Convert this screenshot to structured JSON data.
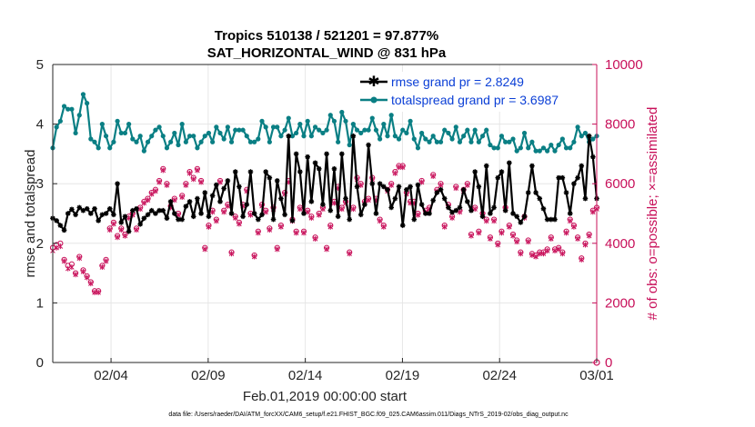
{
  "colors": {
    "rmse": "#000000",
    "spread": "#0a7f84",
    "obs": "#c8105a",
    "axis": "#262626",
    "legend_text": "#0b3fd6"
  },
  "chart_data": {
    "type": "line",
    "title_line1": "Tropics 510138 / 521201 = 97.877%",
    "title_line2": "SAT_HORIZONTAL_WIND @ 831 hPa",
    "xlabel": "Feb.01,2019 00:00:00 start",
    "ylabel_left": "rmse and totalspread",
    "ylabel_right": "# of obs: o=possible; ×=assimilated",
    "x_tick_labels": [
      "02/04",
      "02/09",
      "02/14",
      "02/19",
      "02/24",
      "03/01"
    ],
    "x_tick_days": [
      3,
      8,
      13,
      18,
      23,
      28
    ],
    "xlim": [
      0,
      28
    ],
    "ylim_left": [
      0,
      5
    ],
    "ylim_right": [
      0,
      10000
    ],
    "y_ticks_left": [
      "0",
      "1",
      "2",
      "3",
      "4",
      "5"
    ],
    "y_ticks_right": [
      "0",
      "2000",
      "4000",
      "6000",
      "8000",
      "10000"
    ],
    "legend": {
      "rmse_label": "rmse grand pr = 2.8249",
      "spread_label": "totalspread grand pr = 3.6987"
    },
    "footer": "data file: /Users/raeder/DAI/ATM_forcXX/CAM6_setup/f.e21.FHIST_BGC.f09_025.CAM6assim.011/Diags_NTrS_2019-02/obs_diag_output.nc",
    "series": [
      {
        "name": "rmse",
        "axis": "left",
        "values": [
          2.42,
          2.38,
          2.3,
          2.22,
          2.5,
          2.57,
          2.48,
          2.6,
          2.55,
          2.58,
          2.5,
          2.58,
          2.38,
          2.48,
          2.5,
          2.58,
          2.48,
          3.0,
          2.35,
          2.45,
          2.2,
          2.55,
          2.58,
          2.32,
          2.42,
          2.48,
          2.55,
          2.5,
          2.55,
          2.55,
          2.42,
          2.7,
          2.5,
          2.4,
          2.4,
          2.62,
          2.7,
          2.45,
          2.75,
          2.5,
          2.85,
          2.45,
          2.8,
          2.98,
          2.7,
          2.92,
          3.05,
          2.5,
          3.2,
          2.95,
          2.45,
          2.65,
          3.2,
          2.5,
          2.4,
          2.48,
          3.2,
          3.1,
          2.4,
          3.05,
          2.75,
          2.48,
          3.8,
          2.38,
          3.5,
          3.2,
          2.5,
          3.45,
          2.7,
          3.35,
          3.25,
          2.65,
          3.5,
          2.55,
          3.25,
          2.45,
          3.5,
          2.75,
          2.4,
          3.8,
          2.95,
          2.48,
          2.65,
          3.65,
          3.0,
          2.5,
          3.0,
          2.95,
          2.9,
          2.6,
          2.75,
          2.95,
          2.3,
          2.9,
          2.95,
          2.4,
          2.98,
          2.65,
          2.5,
          2.5,
          2.72,
          2.85,
          2.9,
          2.75,
          2.6,
          2.52,
          2.55,
          2.6,
          2.9,
          2.7,
          2.55,
          3.2,
          2.95,
          2.45,
          3.3,
          2.5,
          2.6,
          3.1,
          3.2,
          2.55,
          3.35,
          2.5,
          2.45,
          2.35,
          2.45,
          2.85,
          3.3,
          2.85,
          2.75,
          2.58,
          2.4,
          2.4,
          2.4,
          3.1,
          3.1,
          2.85,
          2.5,
          3.0,
          3.1,
          3.3,
          2.75,
          3.8,
          3.45,
          2.75
        ]
      },
      {
        "name": "totalspread",
        "axis": "left",
        "values": [
          3.6,
          3.95,
          4.05,
          4.3,
          4.25,
          4.25,
          3.85,
          4.15,
          4.5,
          4.35,
          3.75,
          3.7,
          3.6,
          4.0,
          3.8,
          3.6,
          3.7,
          4.05,
          3.85,
          3.85,
          4.0,
          3.75,
          3.7,
          3.8,
          3.55,
          3.7,
          3.8,
          3.9,
          3.95,
          3.8,
          3.6,
          3.7,
          3.85,
          3.65,
          4.0,
          3.7,
          3.8,
          3.8,
          3.6,
          3.7,
          3.8,
          3.85,
          3.7,
          3.95,
          3.85,
          3.75,
          3.95,
          3.7,
          3.9,
          3.9,
          3.9,
          3.8,
          3.7,
          3.7,
          3.75,
          4.05,
          3.95,
          3.7,
          3.95,
          3.95,
          3.8,
          3.9,
          4.1,
          3.8,
          3.85,
          4.0,
          3.8,
          4.05,
          3.8,
          3.95,
          3.9,
          3.85,
          3.9,
          4.15,
          4.05,
          3.7,
          4.2,
          4.05,
          3.65,
          4.0,
          3.9,
          3.85,
          3.9,
          3.9,
          4.1,
          3.9,
          3.75,
          4.0,
          3.8,
          4.15,
          3.8,
          3.75,
          3.9,
          3.85,
          4.05,
          3.75,
          3.6,
          3.85,
          3.75,
          3.7,
          3.8,
          3.7,
          3.7,
          3.9,
          3.85,
          3.75,
          3.95,
          3.7,
          3.8,
          3.9,
          3.7,
          3.9,
          3.7,
          3.8,
          3.9,
          3.65,
          3.6,
          3.6,
          3.8,
          3.7,
          3.7,
          3.75,
          3.55,
          3.6,
          3.85,
          3.6,
          3.7,
          3.55,
          3.55,
          3.6,
          3.55,
          3.65,
          3.55,
          3.65,
          3.75,
          3.6,
          3.6,
          3.7,
          3.95,
          3.8,
          3.85,
          3.7,
          3.75,
          3.8
        ]
      },
      {
        "name": "obs_possible",
        "axis": "right",
        "values": [
          3850,
          3950,
          4000,
          3450,
          3250,
          3300,
          3000,
          3550,
          3100,
          2900,
          2700,
          2400,
          2400,
          3250,
          3450,
          4500,
          4700,
          4250,
          4500,
          4300,
          4900,
          5000,
          4500,
          5200,
          5400,
          5500,
          5700,
          5800,
          6100,
          6500,
          6000,
          5250,
          5500,
          5000,
          5600,
          6000,
          6400,
          6200,
          6500,
          6100,
          3850,
          4600,
          5100,
          4800,
          6100,
          5100,
          5300,
          3700,
          4900,
          4700,
          5300,
          5800,
          5000,
          3600,
          4400,
          5300,
          5100,
          4500,
          5200,
          3850,
          4600,
          5700,
          6100,
          4800,
          4400,
          5200,
          4400,
          5100,
          4900,
          4200,
          5000,
          5200,
          3850,
          4600,
          5400,
          5900,
          5200,
          5400,
          3700,
          5200,
          6200,
          6000,
          5400,
          5500,
          6200,
          5500,
          4800,
          4600,
          5800,
          6000,
          6400,
          6600,
          6600,
          5700,
          5400,
          5400,
          5000,
          6100,
          5100,
          5200,
          6300,
          5800,
          6000,
          4600,
          5300,
          4900,
          5900,
          5100,
          5800,
          6000,
          4300,
          5200,
          4400,
          5000,
          4800,
          4200,
          4800,
          4000,
          4400,
          5200,
          4600,
          4300,
          4100,
          3700,
          4900,
          4100,
          3650,
          3600,
          3700,
          3700,
          3800,
          4200,
          3800,
          3850,
          3700,
          4400,
          4800,
          4600,
          4200,
          3500,
          4000,
          4300,
          5100,
          5200
        ]
      },
      {
        "name": "obs_assimilated",
        "axis": "right",
        "values": [
          3750,
          3850,
          3900,
          3400,
          3150,
          3200,
          2950,
          3500,
          3050,
          2850,
          2650,
          2350,
          2350,
          3200,
          3400,
          4450,
          4650,
          4200,
          4450,
          4250,
          4850,
          4950,
          4450,
          5150,
          5350,
          5450,
          5650,
          5750,
          6050,
          6450,
          5950,
          5200,
          5450,
          4950,
          5550,
          5950,
          6350,
          6150,
          6450,
          6050,
          3800,
          4550,
          5050,
          4750,
          6050,
          5050,
          5250,
          3650,
          4850,
          4650,
          5250,
          5750,
          4950,
          3550,
          4350,
          5250,
          5050,
          4450,
          5150,
          3800,
          4550,
          5650,
          6050,
          4750,
          4350,
          5150,
          4350,
          5050,
          4850,
          4150,
          4950,
          5150,
          3800,
          4550,
          5350,
          5850,
          5150,
          5350,
          3650,
          5150,
          6150,
          5950,
          5350,
          5450,
          6150,
          5450,
          4750,
          4550,
          5750,
          5950,
          6350,
          6550,
          6550,
          5650,
          5350,
          5350,
          4950,
          6050,
          5050,
          5150,
          6250,
          5750,
          5950,
          4550,
          5250,
          4850,
          5850,
          5050,
          5750,
          5950,
          4250,
          5150,
          4350,
          4950,
          4750,
          4150,
          4750,
          3950,
          4350,
          5150,
          4550,
          4250,
          4050,
          3650,
          4850,
          4050,
          3600,
          3550,
          3650,
          3650,
          3750,
          4150,
          3750,
          3800,
          3650,
          4350,
          4750,
          4550,
          4150,
          3450,
          3950,
          4250,
          5050,
          5150
        ]
      }
    ]
  }
}
